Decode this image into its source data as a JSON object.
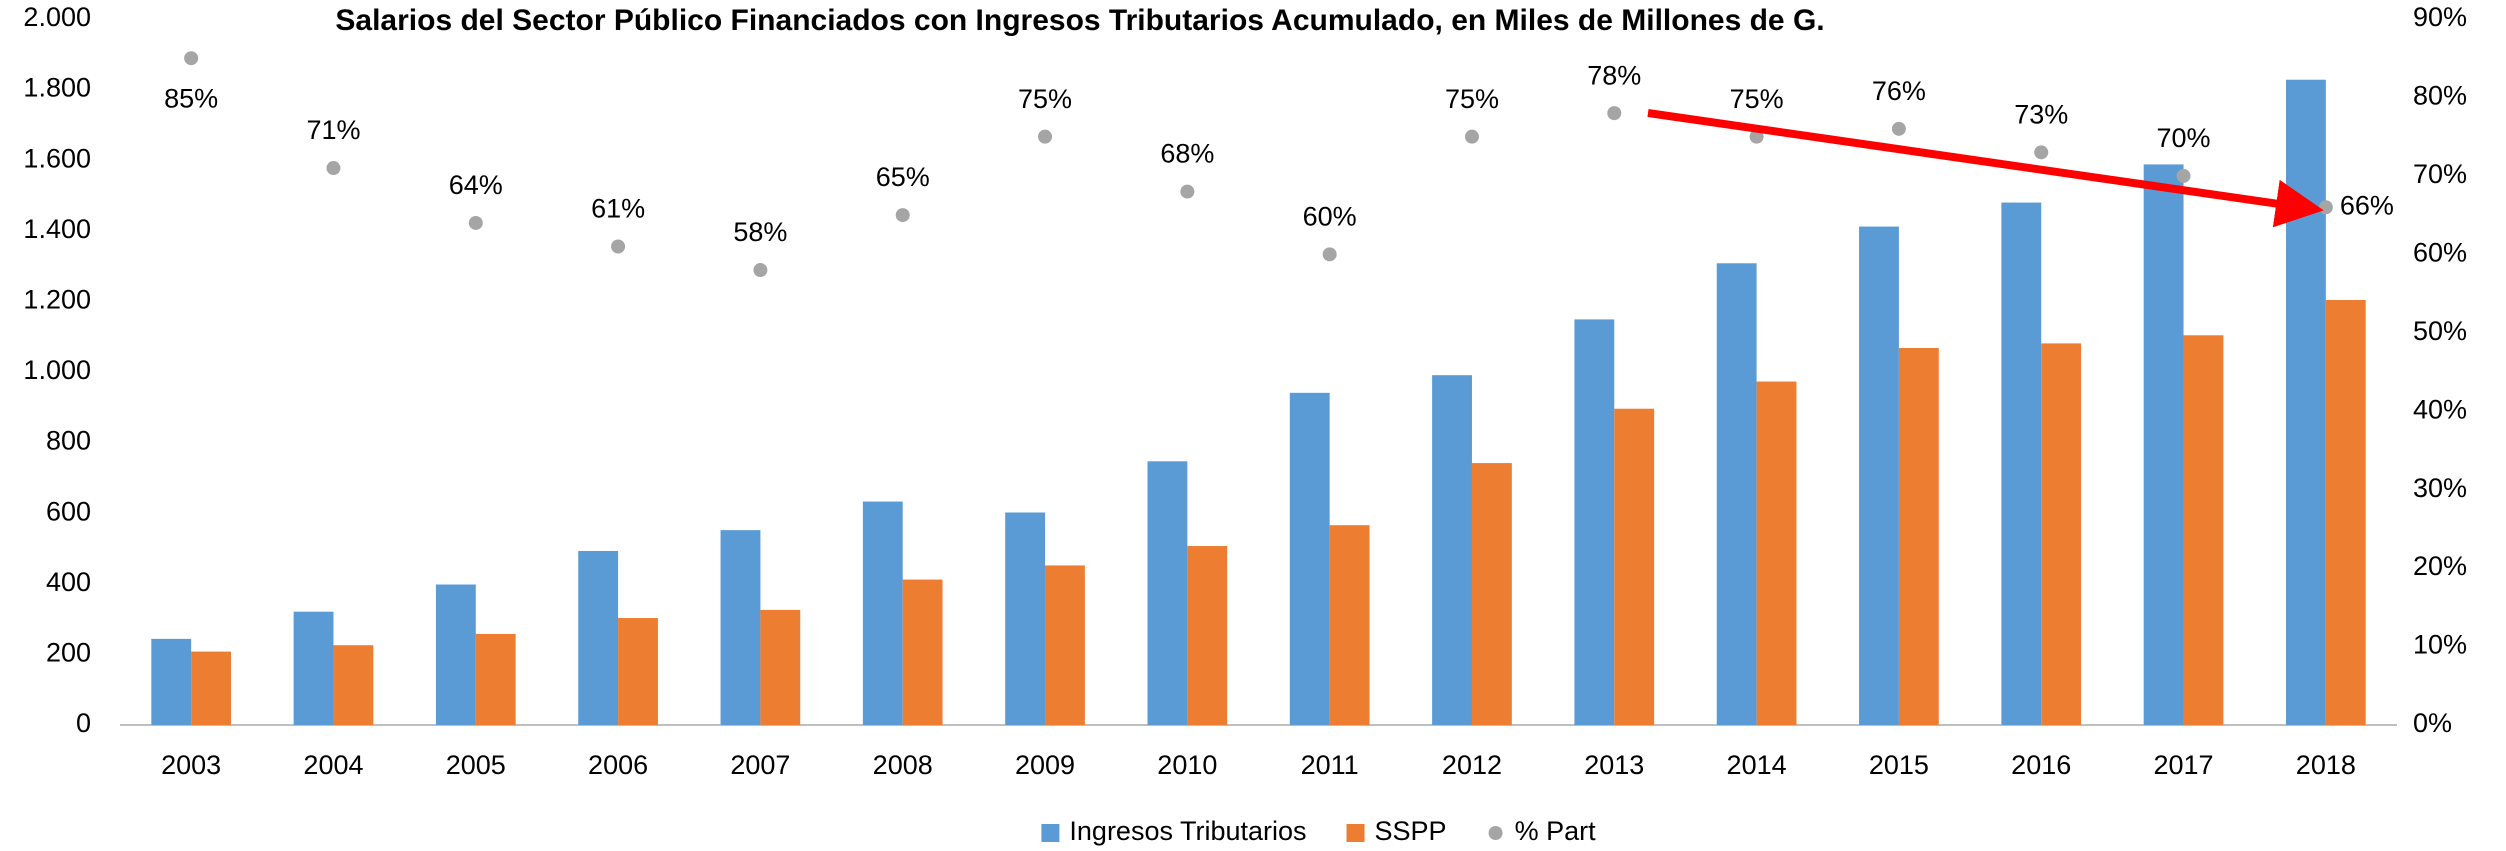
{
  "chart_data": {
    "type": "bar",
    "title": "Salarios del Sector Público Financiados con Ingresos Tributarios Acumulado, en Miles de Millones de G.",
    "categories": [
      "2003",
      "2004",
      "2005",
      "2006",
      "2007",
      "2008",
      "2009",
      "2010",
      "2011",
      "2012",
      "2013",
      "2014",
      "2015",
      "2016",
      "2017",
      "2018"
    ],
    "series": [
      {
        "name": "Ingresos Tributarios",
        "color": "#5b9bd5",
        "values": [
          244,
          321,
          398,
          493,
          552,
          633,
          602,
          747,
          941,
          991,
          1149,
          1308,
          1412,
          1480,
          1588,
          1828
        ]
      },
      {
        "name": "SSPP",
        "color": "#ed7d31",
        "values": [
          208,
          226,
          258,
          303,
          326,
          412,
          452,
          507,
          566,
          742,
          896,
          973,
          1068,
          1081,
          1104,
          1204
        ]
      },
      {
        "name": "% Part",
        "color": "#a5a5a5",
        "axis": "y2",
        "type": "scatter",
        "values": [
          85,
          71,
          64,
          61,
          58,
          65,
          75,
          68,
          60,
          75,
          78,
          75,
          76,
          73,
          70,
          66
        ],
        "value_labels": [
          "85%",
          "71%",
          "64%",
          "61%",
          "58%",
          "65%",
          "75%",
          "68%",
          "60%",
          "75%",
          "78%",
          "75%",
          "76%",
          "73%",
          "70%",
          "66%"
        ]
      }
    ],
    "ylim": [
      0,
      2000
    ],
    "yticks": [
      0,
      200,
      400,
      600,
      800,
      {
        "value": 1000,
        "label": "1.000"
      },
      {
        "value": 1200,
        "label": "1.200"
      },
      {
        "value": 1400,
        "label": "1.400"
      },
      {
        "value": 1600,
        "label": "1.600"
      },
      {
        "value": 1800,
        "label": "1.800"
      },
      {
        "value": 2000,
        "label": "2.000"
      }
    ],
    "y2lim": [
      0,
      90
    ],
    "y2ticks": [
      {
        "value": 0,
        "label": "0%"
      },
      {
        "value": 10,
        "label": "10%"
      },
      {
        "value": 20,
        "label": "20%"
      },
      {
        "value": 30,
        "label": "30%"
      },
      {
        "value": 40,
        "label": "40%"
      },
      {
        "value": 50,
        "label": "50%"
      },
      {
        "value": 60,
        "label": "60%"
      },
      {
        "value": 70,
        "label": "70%"
      },
      {
        "value": 80,
        "label": "80%"
      },
      {
        "value": 90,
        "label": "90%"
      }
    ],
    "grid": false,
    "legend": "bottom"
  }
}
